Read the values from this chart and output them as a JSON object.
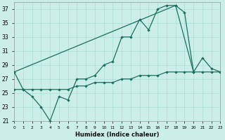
{
  "xlabel": "Humidex (Indice chaleur)",
  "background_color": "#cceee8",
  "grid_color": "#aaddd8",
  "line_color": "#1a7060",
  "xlim": [
    0,
    23
  ],
  "ylim": [
    21,
    38
  ],
  "yticks": [
    21,
    23,
    25,
    27,
    29,
    31,
    33,
    35,
    37
  ],
  "xticks": [
    0,
    1,
    2,
    3,
    4,
    5,
    6,
    7,
    8,
    9,
    10,
    11,
    12,
    13,
    14,
    15,
    16,
    17,
    18,
    19,
    20,
    21,
    22,
    23
  ],
  "curve1_x": [
    0,
    1,
    2,
    3,
    4,
    5,
    6,
    7,
    8,
    9,
    10,
    11,
    12,
    13,
    14,
    15,
    16,
    17,
    18,
    19,
    20
  ],
  "curve1_y": [
    28,
    25.5,
    24.5,
    23,
    21,
    24.5,
    24,
    27,
    27,
    27.5,
    29,
    29.5,
    33,
    33,
    35.5,
    34,
    37,
    37.5,
    37.5,
    36.5,
    28
  ],
  "curve2_x": [
    0,
    1,
    2,
    3,
    4,
    5,
    6,
    7,
    8,
    9,
    10,
    11,
    12,
    13,
    14,
    15,
    16,
    17,
    18,
    19,
    20,
    21,
    22,
    23
  ],
  "curve2_y": [
    25.5,
    25.5,
    25.5,
    25.5,
    25.5,
    25.5,
    25.5,
    26,
    26,
    26.5,
    26.5,
    26.5,
    27,
    27,
    27.5,
    27.5,
    27.5,
    28,
    28,
    28,
    28,
    28,
    28,
    28
  ],
  "curve3_x": [
    0,
    18,
    20,
    21,
    22,
    23
  ],
  "curve3_y": [
    28,
    37.5,
    28,
    30,
    28.5,
    28
  ]
}
